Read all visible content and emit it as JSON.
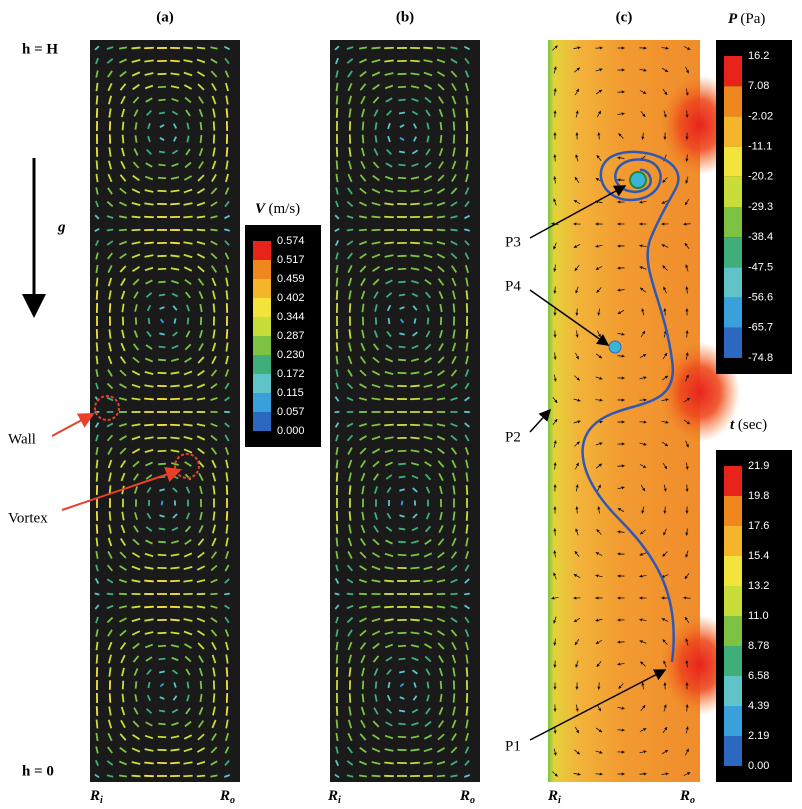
{
  "panels": [
    {
      "label": "(a)",
      "inner": {
        "main": "R",
        "sub": "i"
      },
      "outer": {
        "main": "R",
        "sub": "o"
      }
    },
    {
      "label": "(b)",
      "inner": {
        "main": "R",
        "sub": "i"
      },
      "outer": {
        "main": "R",
        "sub": "o"
      }
    },
    {
      "label": "(c)",
      "inner": {
        "main": "R",
        "sub": "i"
      },
      "outer": {
        "main": "R",
        "sub": "o"
      }
    }
  ],
  "height_top": "h = H",
  "height_bottom": "h = 0",
  "gravity": "g",
  "annotations": {
    "wall": "Wall",
    "vortex": "Vortex",
    "p1": "P1",
    "p2": "P2",
    "p3": "P3",
    "p4": "P4"
  },
  "colorbars": [
    {
      "symbol": "V",
      "unit": "(m/s)",
      "labels": [
        "0.574",
        "0.517",
        "0.459",
        "0.402",
        "0.344",
        "0.287",
        "0.230",
        "0.172",
        "0.115",
        "0.057",
        "0.000"
      ]
    },
    {
      "symbol": "P",
      "unit": "(Pa)",
      "labels": [
        "16.2",
        "7.08",
        "-2.02",
        "-11.1",
        "-20.2",
        "-29.3",
        "-38.4",
        "-47.5",
        "-56.6",
        "-65.7",
        "-74.8"
      ]
    },
    {
      "symbol": "t",
      "unit": "(sec)",
      "labels": [
        "21.9",
        "19.8",
        "17.6",
        "15.4",
        "13.2",
        "11.0",
        "8.78",
        "6.58",
        "4.39",
        "2.19",
        "0.00"
      ]
    }
  ]
}
